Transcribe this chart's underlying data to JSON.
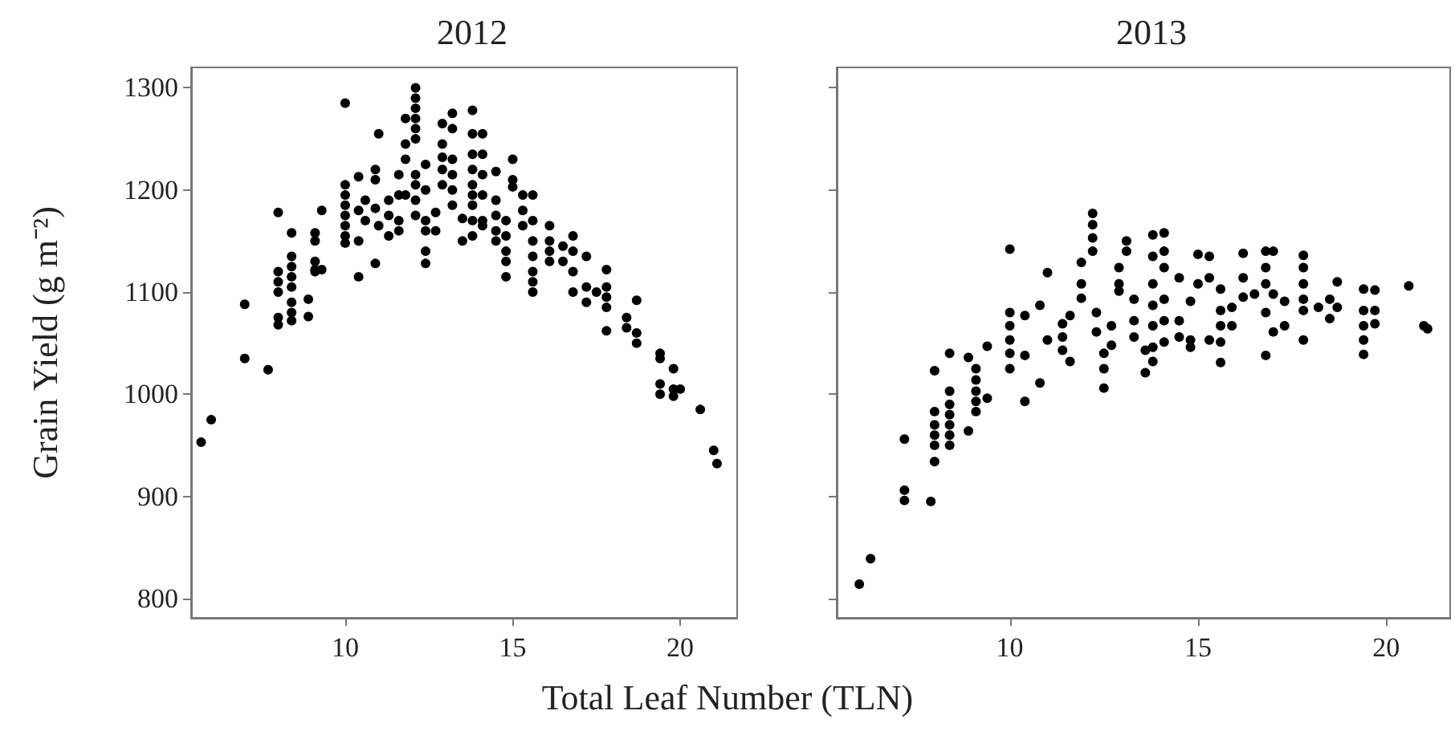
{
  "chart_data": [
    {
      "type": "scatter",
      "title": "2012",
      "xlabel": "Total Leaf Number (TLN)",
      "ylabel": "Grain Yield (g m⁻²)",
      "color": "#000000",
      "marker": "circle",
      "xlim": [
        5.4,
        21.7
      ],
      "ylim": [
        781,
        1320
      ],
      "xticks": [
        10,
        15,
        20
      ],
      "yticks": [
        800,
        900,
        1000,
        1100,
        1200,
        1300
      ],
      "x": [
        5.7,
        6.0,
        7.0,
        7.0,
        7.7,
        8.0,
        8.0,
        8.0,
        8.0,
        8.0,
        8.0,
        8.4,
        8.4,
        8.4,
        8.4,
        8.4,
        8.4,
        8.4,
        8.4,
        8.9,
        8.9,
        9.1,
        9.1,
        9.1,
        9.1,
        9.1,
        9.3,
        9.3,
        10.0,
        10.0,
        10.0,
        10.0,
        10.0,
        10.0,
        10.0,
        10.0,
        10.4,
        10.4,
        10.4,
        10.4,
        10.6,
        10.6,
        10.9,
        10.9,
        10.9,
        10.9,
        11.0,
        11.0,
        11.3,
        11.3,
        11.3,
        11.6,
        11.6,
        11.6,
        11.6,
        11.8,
        11.8,
        11.8,
        11.8,
        12.1,
        12.1,
        12.1,
        12.1,
        12.1,
        12.1,
        12.1,
        12.1,
        12.1,
        12.1,
        12.4,
        12.4,
        12.4,
        12.4,
        12.4,
        12.4,
        12.7,
        12.7,
        12.9,
        12.9,
        12.9,
        12.9,
        12.9,
        13.2,
        13.2,
        13.2,
        13.2,
        13.2,
        13.2,
        13.5,
        13.5,
        13.8,
        13.8,
        13.8,
        13.8,
        13.8,
        13.8,
        13.8,
        13.8,
        13.8,
        14.1,
        14.1,
        14.1,
        14.1,
        14.1,
        14.1,
        14.5,
        14.5,
        14.5,
        14.5,
        14.5,
        14.8,
        14.8,
        14.8,
        14.8,
        14.8,
        15.0,
        15.0,
        15.0,
        15.3,
        15.3,
        15.3,
        15.6,
        15.6,
        15.6,
        15.6,
        15.6,
        15.6,
        15.6,
        16.1,
        16.1,
        16.1,
        16.1,
        16.5,
        16.5,
        16.8,
        16.8,
        16.8,
        16.8,
        17.2,
        17.2,
        17.2,
        17.5,
        17.8,
        17.8,
        17.8,
        17.8,
        17.8,
        18.4,
        18.4,
        18.7,
        18.7,
        18.7,
        19.4,
        19.4,
        19.4,
        19.4,
        19.8,
        19.8,
        19.8,
        20.0,
        20.6,
        21.0,
        21.1
      ],
      "values": [
        953,
        975,
        1088,
        1035,
        1024,
        1178,
        1120,
        1110,
        1100,
        1075,
        1068,
        1158,
        1135,
        1125,
        1115,
        1105,
        1090,
        1080,
        1072,
        1093,
        1076,
        1158,
        1150,
        1130,
        1122,
        1120,
        1180,
        1122,
        1205,
        1195,
        1185,
        1175,
        1165,
        1155,
        1148,
        1285,
        1213,
        1180,
        1150,
        1115,
        1190,
        1170,
        1220,
        1210,
        1182,
        1128,
        1255,
        1165,
        1190,
        1175,
        1155,
        1215,
        1195,
        1170,
        1160,
        1270,
        1245,
        1230,
        1195,
        1300,
        1290,
        1280,
        1270,
        1260,
        1250,
        1215,
        1205,
        1190,
        1175,
        1225,
        1200,
        1170,
        1140,
        1128,
        1160,
        1178,
        1160,
        1265,
        1245,
        1232,
        1220,
        1205,
        1275,
        1260,
        1230,
        1215,
        1200,
        1185,
        1172,
        1150,
        1278,
        1255,
        1235,
        1220,
        1205,
        1195,
        1185,
        1170,
        1155,
        1255,
        1235,
        1215,
        1195,
        1170,
        1165,
        1218,
        1190,
        1175,
        1160,
        1150,
        1170,
        1155,
        1140,
        1130,
        1115,
        1230,
        1210,
        1203,
        1195,
        1180,
        1165,
        1195,
        1170,
        1150,
        1135,
        1120,
        1110,
        1100,
        1165,
        1150,
        1140,
        1130,
        1130,
        1145,
        1155,
        1140,
        1120,
        1100,
        1135,
        1105,
        1090,
        1100,
        1122,
        1105,
        1095,
        1085,
        1062,
        1075,
        1065,
        1092,
        1060,
        1050,
        1040,
        1035,
        1010,
        1000,
        1025,
        1005,
        998,
        1005,
        985,
        945,
        932
      ]
    },
    {
      "type": "scatter",
      "title": "2013",
      "color": "#000000",
      "marker": "circle",
      "tick_labels": "x",
      "xlim": [
        5.4,
        21.7
      ],
      "ylim": [
        781,
        1320
      ],
      "xticks": [
        10,
        15,
        20
      ],
      "yticks": [
        800,
        900,
        1000,
        1100,
        1200,
        1300
      ],
      "x": [
        6.0,
        6.3,
        7.2,
        7.2,
        7.2,
        7.9,
        8.0,
        8.0,
        8.0,
        8.0,
        8.0,
        8.0,
        8.4,
        8.4,
        8.4,
        8.4,
        8.4,
        8.4,
        8.4,
        8.9,
        8.9,
        9.1,
        9.1,
        9.1,
        9.1,
        9.1,
        9.4,
        9.4,
        10.0,
        10.0,
        10.0,
        10.0,
        10.0,
        10.0,
        10.4,
        10.4,
        10.4,
        10.8,
        10.8,
        11.0,
        11.0,
        11.4,
        11.4,
        11.4,
        11.6,
        11.6,
        11.9,
        11.9,
        11.9,
        12.2,
        12.2,
        12.2,
        12.2,
        12.3,
        12.3,
        12.5,
        12.5,
        12.5,
        12.7,
        12.7,
        12.9,
        12.9,
        12.9,
        13.1,
        13.1,
        13.3,
        13.3,
        13.3,
        13.6,
        13.6,
        13.8,
        13.8,
        13.8,
        13.8,
        13.8,
        13.8,
        13.8,
        14.1,
        14.1,
        14.1,
        14.1,
        14.1,
        14.1,
        14.5,
        14.5,
        14.5,
        14.8,
        14.8,
        14.8,
        15.0,
        15.0,
        15.3,
        15.3,
        15.3,
        15.6,
        15.6,
        15.6,
        15.6,
        15.6,
        15.9,
        15.9,
        16.2,
        16.2,
        16.2,
        16.5,
        16.8,
        16.8,
        16.8,
        16.8,
        16.8,
        17.0,
        17.0,
        17.0,
        17.3,
        17.3,
        17.8,
        17.8,
        17.8,
        17.8,
        17.8,
        17.8,
        18.2,
        18.5,
        18.5,
        18.7,
        18.7,
        19.4,
        19.4,
        19.4,
        19.4,
        19.4,
        19.7,
        19.7,
        19.7,
        20.6,
        21.0,
        21.1
      ],
      "values": [
        814,
        839,
        956,
        906,
        896,
        895,
        1023,
        983,
        970,
        960,
        950,
        934,
        1040,
        1003,
        990,
        980,
        970,
        960,
        950,
        964,
        1036,
        1025,
        1014,
        1003,
        993,
        983,
        1047,
        996,
        1142,
        1080,
        1067,
        1053,
        1040,
        1025,
        993,
        1077,
        1038,
        1087,
        1011,
        1119,
        1053,
        1069,
        1056,
        1043,
        1077,
        1032,
        1129,
        1108,
        1094,
        1177,
        1166,
        1153,
        1140,
        1080,
        1061,
        1040,
        1025,
        1006,
        1067,
        1048,
        1124,
        1108,
        1101,
        1150,
        1140,
        1093,
        1072,
        1056,
        1043,
        1021,
        1156,
        1135,
        1108,
        1087,
        1067,
        1046,
        1032,
        1158,
        1140,
        1124,
        1093,
        1072,
        1051,
        1114,
        1072,
        1056,
        1091,
        1053,
        1046,
        1137,
        1108,
        1135,
        1114,
        1053,
        1103,
        1082,
        1067,
        1051,
        1031,
        1067,
        1085,
        1138,
        1114,
        1095,
        1098,
        1140,
        1124,
        1108,
        1080,
        1038,
        1061,
        1140,
        1098,
        1091,
        1067,
        1136,
        1124,
        1108,
        1093,
        1082,
        1053,
        1085,
        1093,
        1074,
        1110,
        1085,
        1103,
        1082,
        1067,
        1053,
        1039,
        1102,
        1082,
        1069,
        1106,
        1067,
        1064
      ]
    }
  ]
}
